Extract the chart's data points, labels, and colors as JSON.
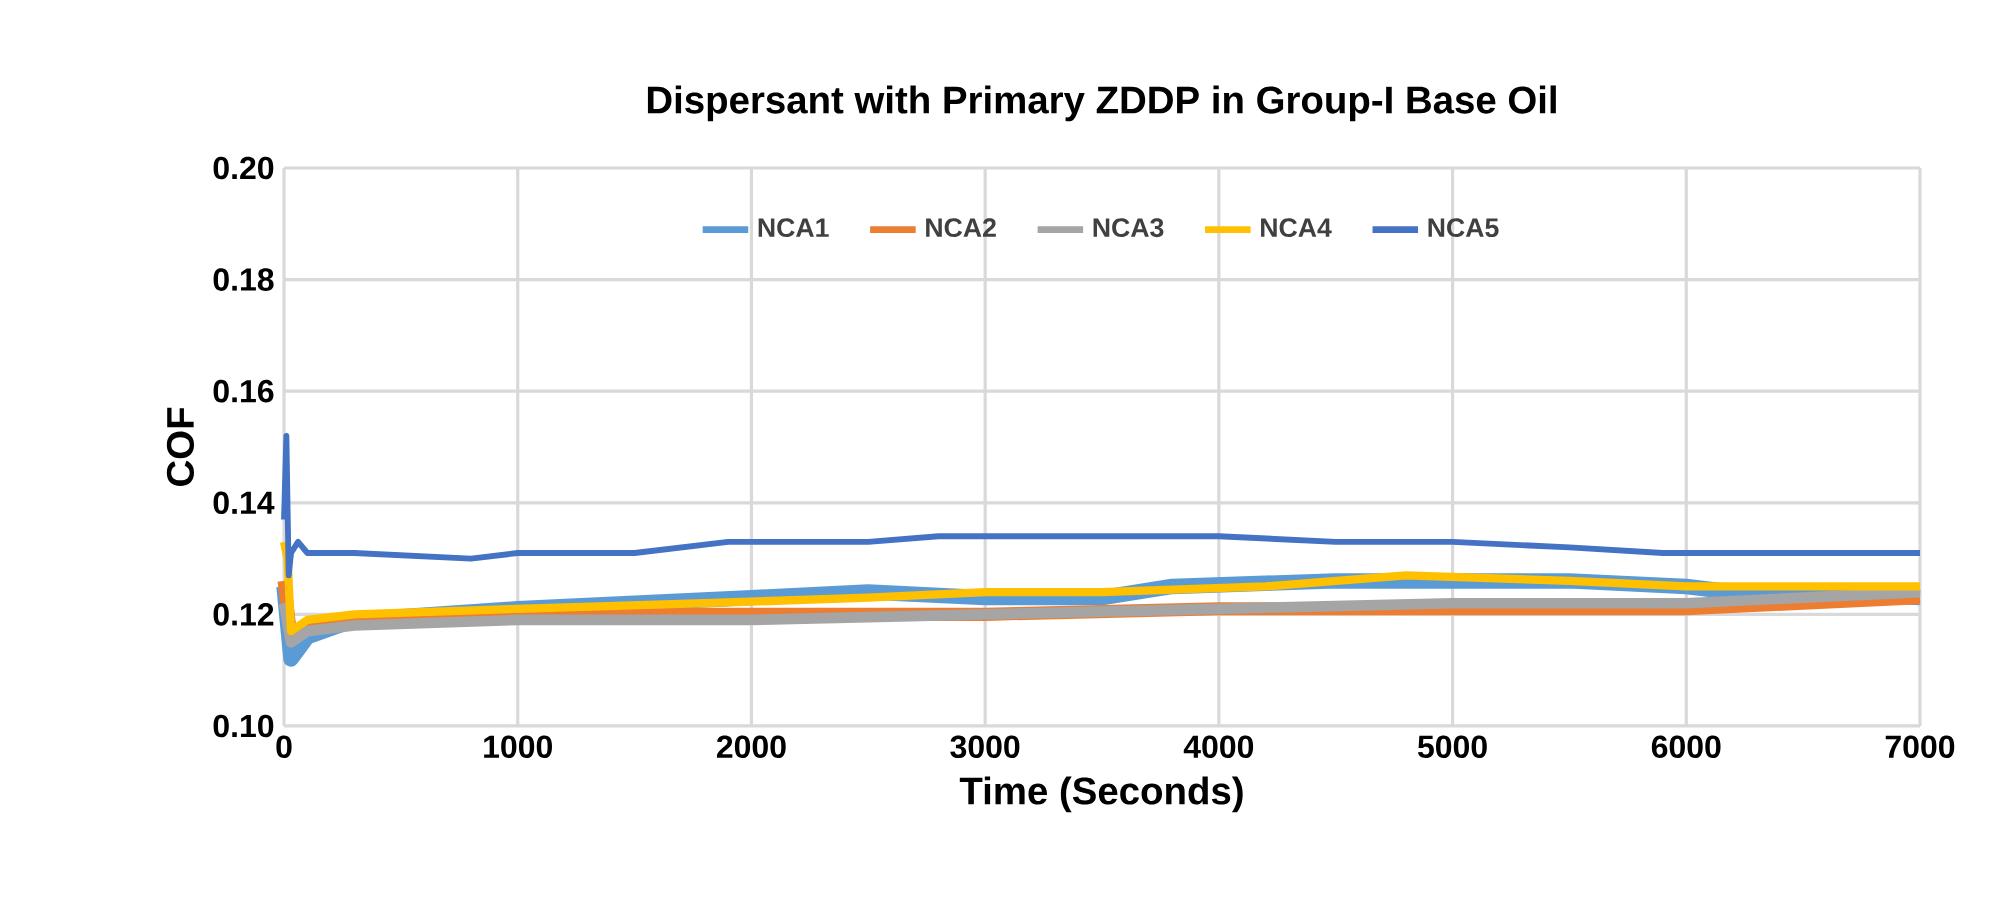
{
  "chart_data": {
    "type": "line",
    "title": "Dispersant with Primary ZDDP in Group-I Base Oil",
    "xlabel": "Time (Seconds)",
    "ylabel": "COF",
    "xlim": [
      0,
      7000
    ],
    "xticks": [
      0,
      1000,
      2000,
      3000,
      4000,
      5000,
      6000,
      7000
    ],
    "ylim": [
      0.1,
      0.2
    ],
    "yticks": [
      {
        "value": 0.1,
        "label": "0.10"
      },
      {
        "value": 0.12,
        "label": "0.12"
      },
      {
        "value": 0.14,
        "label": "0.14"
      },
      {
        "value": 0.16,
        "label": "0.16"
      },
      {
        "value": 0.18,
        "label": "0.18"
      },
      {
        "value": 0.2,
        "label": "0.20"
      }
    ],
    "grid": true,
    "legend": "top",
    "marker": "none",
    "line_style": "solid",
    "series": [
      {
        "name": "NCA1",
        "color": "#5b9bd5",
        "x": [
          0,
          30,
          100,
          300,
          1000,
          1500,
          2000,
          2500,
          3000,
          3500,
          3800,
          4500,
          5000,
          5500,
          6000,
          6200,
          6500,
          7000
        ],
        "values": [
          0.125,
          0.112,
          0.116,
          0.119,
          0.121,
          0.122,
          0.123,
          0.124,
          0.123,
          0.123,
          0.125,
          0.126,
          0.126,
          0.126,
          0.125,
          0.124,
          0.124,
          0.123
        ]
      },
      {
        "name": "NCA2",
        "color": "#ed7d31",
        "x": [
          0,
          30,
          100,
          300,
          1000,
          2000,
          3000,
          4000,
          5000,
          6000,
          6500,
          7000
        ],
        "values": [
          0.126,
          0.116,
          0.118,
          0.119,
          0.12,
          0.12,
          0.12,
          0.121,
          0.121,
          0.121,
          0.122,
          0.123
        ]
      },
      {
        "name": "NCA3",
        "color": "#a5a5a5",
        "x": [
          0,
          30,
          100,
          300,
          1000,
          2000,
          3000,
          4000,
          5000,
          6000,
          6500,
          7000
        ],
        "values": [
          0.122,
          0.115,
          0.117,
          0.118,
          0.119,
          0.119,
          0.12,
          0.121,
          0.122,
          0.122,
          0.123,
          0.124
        ]
      },
      {
        "name": "NCA4",
        "color": "#ffc000",
        "x": [
          0,
          15,
          30,
          100,
          300,
          1000,
          1800,
          2500,
          3000,
          3500,
          4200,
          4800,
          5500,
          6000,
          6500,
          7000
        ],
        "values": [
          0.133,
          0.13,
          0.117,
          0.119,
          0.12,
          0.121,
          0.122,
          0.123,
          0.124,
          0.124,
          0.125,
          0.127,
          0.126,
          0.125,
          0.125,
          0.125
        ]
      },
      {
        "name": "NCA5",
        "color": "#4472c4",
        "x": [
          0,
          10,
          20,
          30,
          60,
          100,
          300,
          800,
          1000,
          1500,
          1900,
          2200,
          2500,
          2800,
          3500,
          4000,
          4500,
          5000,
          5500,
          5900,
          6500,
          7000
        ],
        "values": [
          0.137,
          0.152,
          0.127,
          0.131,
          0.133,
          0.131,
          0.131,
          0.13,
          0.131,
          0.131,
          0.133,
          0.133,
          0.133,
          0.134,
          0.134,
          0.134,
          0.133,
          0.133,
          0.132,
          0.131,
          0.131,
          0.131
        ]
      }
    ]
  }
}
